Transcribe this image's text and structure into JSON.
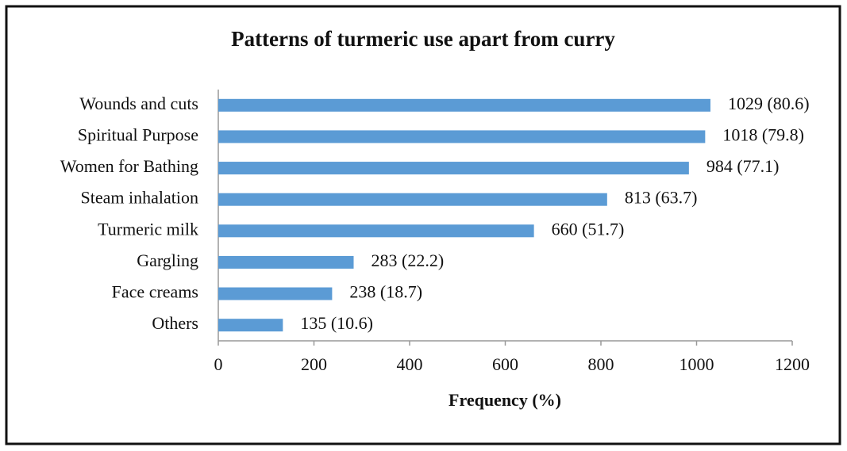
{
  "chart_data": {
    "type": "barh",
    "title": "Patterns of turmeric use apart from curry",
    "categories": [
      "Wounds and cuts",
      "Spiritual Purpose",
      "Women for Bathing",
      "Steam inhalation",
      "Turmeric milk",
      "Gargling",
      "Face creams",
      "Others"
    ],
    "values": [
      1029,
      1018,
      984,
      813,
      660,
      283,
      238,
      135
    ],
    "value_labels": [
      "1029 (80.6)",
      "1018 (79.8)",
      "984 (77.1)",
      "813 (63.7)",
      "660 (51.7)",
      "283 (22.2)",
      "238 (18.7)",
      "135 (10.6)"
    ],
    "color": "#5b9bd5",
    "x_label": "Frequency (%)",
    "xlim": [
      0,
      1200
    ],
    "xticks": [
      0,
      200,
      400,
      600,
      800,
      1000,
      1200
    ],
    "grid": false
  }
}
